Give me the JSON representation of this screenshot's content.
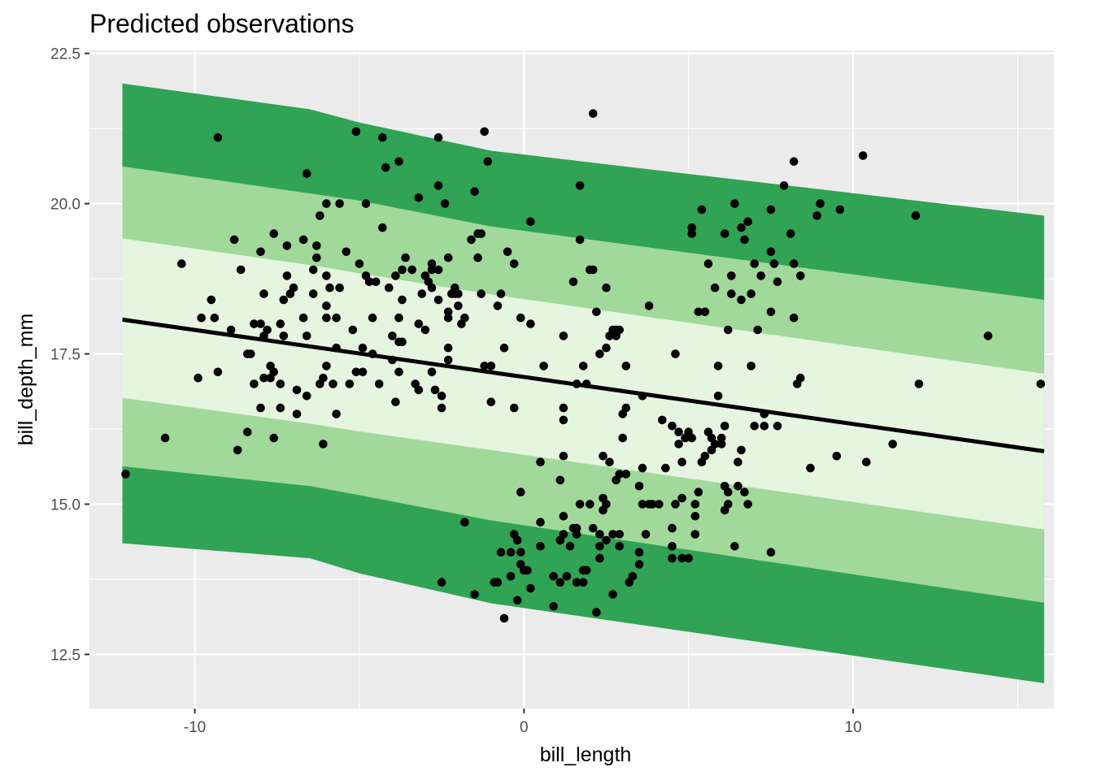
{
  "chart_data": {
    "type": "scatter",
    "title": "Predicted observations",
    "xlabel": "bill_length",
    "ylabel": "bill_depth_mm",
    "xlim": [
      -13.2,
      16.1
    ],
    "ylim": [
      11.6,
      22.55
    ],
    "x_ticks": [
      -10,
      0,
      10
    ],
    "x_tick_labels": [
      "-10",
      "0",
      "10"
    ],
    "y_ticks": [
      12.5,
      15.0,
      17.5,
      20.0,
      22.5
    ],
    "y_tick_labels": [
      "12.5",
      "15.0",
      "17.5",
      "20.0",
      "22.5"
    ],
    "grid": true,
    "background": "#ebebeb",
    "band_colors": {
      "outer": "#31a354",
      "middle": "#a1d99b",
      "inner": "#e5f5e0"
    },
    "line_color": "#000000",
    "point_color": "#000000",
    "fit_line": {
      "x": [
        -12.2,
        15.8
      ],
      "y": [
        18.07,
        15.88
      ]
    },
    "bands": {
      "x": [
        -12.2,
        -6.5,
        -5.0,
        -1.0,
        15.8
      ],
      "outer_upper": [
        22.0,
        21.57,
        21.35,
        20.88,
        19.8
      ],
      "middle_upper": [
        20.62,
        20.17,
        20.05,
        19.62,
        18.4
      ],
      "inner_upper": [
        19.42,
        18.98,
        18.84,
        18.49,
        17.17
      ],
      "inner_lower": [
        16.77,
        16.34,
        16.21,
        15.9,
        14.58
      ],
      "middle_lower": [
        15.63,
        15.3,
        15.15,
        14.73,
        13.36
      ],
      "outer_lower": [
        14.35,
        14.1,
        13.85,
        13.35,
        12.02
      ]
    },
    "points": [
      [
        -12.1,
        15.5
      ],
      [
        -10.9,
        16.1
      ],
      [
        -10.4,
        19.0
      ],
      [
        -9.9,
        17.1
      ],
      [
        -9.8,
        18.1
      ],
      [
        -9.5,
        18.4
      ],
      [
        -9.4,
        18.1
      ],
      [
        -9.3,
        17.2
      ],
      [
        -9.3,
        21.1
      ],
      [
        -8.9,
        17.9
      ],
      [
        -8.8,
        19.4
      ],
      [
        -8.7,
        15.9
      ],
      [
        -8.6,
        18.9
      ],
      [
        -8.4,
        16.2
      ],
      [
        -8.4,
        17.5
      ],
      [
        -8.3,
        17.5
      ],
      [
        -8.2,
        18.0
      ],
      [
        -8.2,
        17.0
      ],
      [
        -8.0,
        16.6
      ],
      [
        -8.0,
        18.0
      ],
      [
        -8.0,
        19.2
      ],
      [
        -7.9,
        17.8
      ],
      [
        -7.9,
        17.1
      ],
      [
        -7.9,
        18.5
      ],
      [
        -7.8,
        17.9
      ],
      [
        -7.7,
        17.1
      ],
      [
        -7.7,
        17.3
      ],
      [
        -7.6,
        16.1
      ],
      [
        -7.6,
        17.2
      ],
      [
        -7.6,
        19.5
      ],
      [
        -7.4,
        17.0
      ],
      [
        -7.4,
        16.6
      ],
      [
        -7.4,
        18.0
      ],
      [
        -7.3,
        17.8
      ],
      [
        -7.3,
        18.4
      ],
      [
        -7.2,
        18.8
      ],
      [
        -7.2,
        19.3
      ],
      [
        -7.1,
        18.5
      ],
      [
        -7.0,
        18.6
      ],
      [
        -6.9,
        16.5
      ],
      [
        -6.9,
        16.9
      ],
      [
        -6.7,
        18.1
      ],
      [
        -6.7,
        19.4
      ],
      [
        -6.6,
        20.5
      ],
      [
        -6.6,
        17.8
      ],
      [
        -6.6,
        16.8
      ],
      [
        -6.4,
        18.5
      ],
      [
        -6.4,
        18.9
      ],
      [
        -6.3,
        19.1
      ],
      [
        -6.3,
        19.3
      ],
      [
        -6.2,
        17.0
      ],
      [
        -6.2,
        19.8
      ],
      [
        -6.1,
        16.0
      ],
      [
        -6.1,
        17.1
      ],
      [
        -6.0,
        17.3
      ],
      [
        -6.0,
        18.1
      ],
      [
        -6.0,
        18.3
      ],
      [
        -6.0,
        18.8
      ],
      [
        -6.0,
        20.0
      ],
      [
        -5.9,
        18.6
      ],
      [
        -5.8,
        17.0
      ],
      [
        -5.7,
        16.5
      ],
      [
        -5.7,
        17.6
      ],
      [
        -5.7,
        18.1
      ],
      [
        -5.6,
        18.6
      ],
      [
        -5.6,
        20.0
      ],
      [
        -5.4,
        19.2
      ],
      [
        -5.3,
        17.0
      ],
      [
        -5.2,
        17.9
      ],
      [
        -5.1,
        17.2
      ],
      [
        -5.1,
        21.2
      ],
      [
        -5.0,
        19.0
      ],
      [
        -4.9,
        17.2
      ],
      [
        -4.9,
        17.6
      ],
      [
        -4.8,
        20.0
      ],
      [
        -4.8,
        18.8
      ],
      [
        -4.7,
        18.7
      ],
      [
        -4.6,
        17.5
      ],
      [
        -4.6,
        18.1
      ],
      [
        -4.5,
        18.7
      ],
      [
        -4.4,
        17.0
      ],
      [
        -4.3,
        19.6
      ],
      [
        -4.3,
        21.1
      ],
      [
        -4.2,
        20.6
      ],
      [
        -4.1,
        18.6
      ],
      [
        -4.0,
        17.4
      ],
      [
        -4.0,
        17.8
      ],
      [
        -3.9,
        16.7
      ],
      [
        -3.9,
        18.8
      ],
      [
        -3.8,
        17.2
      ],
      [
        -3.8,
        18.1
      ],
      [
        -3.8,
        20.7
      ],
      [
        -3.8,
        17.7
      ],
      [
        -3.7,
        17.7
      ],
      [
        -3.7,
        18.4
      ],
      [
        -3.7,
        18.9
      ],
      [
        -3.6,
        19.1
      ],
      [
        -3.4,
        18.9
      ],
      [
        -3.3,
        17.0
      ],
      [
        -3.2,
        20.1
      ],
      [
        -3.2,
        16.9
      ],
      [
        -3.2,
        18.0
      ],
      [
        -3.1,
        18.5
      ],
      [
        -3.0,
        18.8
      ],
      [
        -3.0,
        17.9
      ],
      [
        -2.9,
        18.7
      ],
      [
        -2.8,
        18.9
      ],
      [
        -2.8,
        18.6
      ],
      [
        -2.8,
        19.0
      ],
      [
        -2.8,
        17.2
      ],
      [
        -2.7,
        16.9
      ],
      [
        -2.6,
        18.4
      ],
      [
        -2.6,
        18.9
      ],
      [
        -2.5,
        16.8
      ],
      [
        -2.5,
        16.6
      ],
      [
        -2.5,
        13.7
      ],
      [
        -2.4,
        20.0
      ],
      [
        -2.3,
        19.1
      ],
      [
        -2.3,
        17.4
      ],
      [
        -2.3,
        17.6
      ],
      [
        -2.3,
        18.1
      ],
      [
        -2.3,
        18.2
      ],
      [
        -2.2,
        18.5
      ],
      [
        -2.1,
        18.6
      ],
      [
        -2.1,
        18.5
      ],
      [
        -2.0,
        18.3
      ],
      [
        -2.0,
        18.5
      ],
      [
        -1.9,
        18.0
      ],
      [
        -1.8,
        18.1
      ],
      [
        -2.6,
        20.3
      ],
      [
        -2.6,
        21.1
      ],
      [
        -1.8,
        14.7
      ],
      [
        -1.6,
        19.4
      ],
      [
        -1.5,
        13.5
      ],
      [
        -1.5,
        20.2
      ],
      [
        -1.4,
        19.5
      ],
      [
        -1.4,
        19.1
      ],
      [
        -1.3,
        18.5
      ],
      [
        -1.3,
        19.5
      ],
      [
        -1.2,
        21.2
      ],
      [
        -1.2,
        17.3
      ],
      [
        -1.1,
        20.7
      ],
      [
        -1.0,
        17.3
      ],
      [
        -1.0,
        16.7
      ],
      [
        -0.9,
        13.7
      ],
      [
        -0.8,
        13.7
      ],
      [
        -0.8,
        18.3
      ],
      [
        -0.7,
        14.2
      ],
      [
        -0.7,
        18.5
      ],
      [
        -0.6,
        13.1
      ],
      [
        -0.6,
        17.6
      ],
      [
        -0.5,
        19.2
      ],
      [
        -0.4,
        14.2
      ],
      [
        -0.4,
        13.8
      ],
      [
        -0.3,
        19.0
      ],
      [
        -0.3,
        16.6
      ],
      [
        -0.3,
        14.5
      ],
      [
        -0.2,
        14.4
      ],
      [
        -0.2,
        13.4
      ],
      [
        -0.1,
        15.2
      ],
      [
        -0.1,
        18.1
      ],
      [
        -0.1,
        14.2
      ],
      [
        -0.1,
        14.0
      ],
      [
        0.0,
        13.9
      ],
      [
        0.1,
        13.9
      ],
      [
        0.2,
        13.6
      ],
      [
        0.2,
        18.0
      ],
      [
        0.2,
        19.7
      ],
      [
        0.5,
        14.7
      ],
      [
        0.5,
        15.7
      ],
      [
        0.5,
        14.3
      ],
      [
        0.6,
        17.3
      ],
      [
        0.9,
        13.3
      ],
      [
        0.9,
        13.8
      ],
      [
        1.1,
        15.4
      ],
      [
        1.1,
        13.7
      ],
      [
        1.1,
        14.4
      ],
      [
        1.2,
        14.8
      ],
      [
        1.2,
        14.5
      ],
      [
        1.2,
        17.8
      ],
      [
        1.2,
        16.6
      ],
      [
        1.2,
        16.4
      ],
      [
        1.2,
        15.8
      ],
      [
        1.3,
        13.8
      ],
      [
        1.4,
        14.3
      ],
      [
        1.5,
        18.7
      ],
      [
        1.5,
        14.6
      ],
      [
        1.6,
        13.7
      ],
      [
        1.6,
        14.5
      ],
      [
        1.6,
        17.0
      ],
      [
        1.6,
        14.6
      ],
      [
        1.7,
        20.3
      ],
      [
        1.7,
        15.0
      ],
      [
        1.7,
        19.4
      ],
      [
        1.8,
        13.7
      ],
      [
        1.8,
        13.9
      ],
      [
        1.8,
        17.3
      ],
      [
        1.9,
        17.0
      ],
      [
        1.9,
        13.9
      ],
      [
        2.0,
        18.9
      ],
      [
        2.0,
        15.0
      ],
      [
        2.1,
        21.5
      ],
      [
        2.1,
        18.9
      ],
      [
        2.1,
        14.6
      ],
      [
        2.2,
        13.2
      ],
      [
        2.2,
        18.2
      ],
      [
        2.3,
        14.1
      ],
      [
        2.3,
        14.5
      ],
      [
        2.3,
        14.3
      ],
      [
        2.3,
        17.5
      ],
      [
        2.4,
        14.9
      ],
      [
        2.4,
        15.1
      ],
      [
        2.4,
        15.8
      ],
      [
        2.5,
        14.4
      ],
      [
        2.5,
        17.6
      ],
      [
        2.5,
        18.6
      ],
      [
        2.5,
        15.0
      ],
      [
        2.6,
        17.8
      ],
      [
        2.6,
        15.7
      ],
      [
        2.7,
        13.5
      ],
      [
        2.7,
        14.5
      ],
      [
        2.7,
        17.9
      ],
      [
        2.8,
        17.8
      ],
      [
        2.8,
        15.4
      ],
      [
        2.8,
        17.9
      ],
      [
        2.9,
        15.5
      ],
      [
        2.9,
        14.5
      ],
      [
        2.9,
        14.3
      ],
      [
        2.9,
        17.9
      ],
      [
        3.0,
        16.5
      ],
      [
        3.0,
        16.1
      ],
      [
        3.1,
        16.6
      ],
      [
        3.1,
        15.5
      ],
      [
        3.1,
        17.3
      ],
      [
        3.2,
        13.7
      ],
      [
        3.3,
        13.8
      ],
      [
        3.5,
        14.2
      ],
      [
        3.5,
        15.3
      ],
      [
        3.5,
        14.0
      ],
      [
        3.6,
        15.0
      ],
      [
        3.6,
        16.8
      ],
      [
        3.6,
        15.6
      ],
      [
        3.7,
        14.5
      ],
      [
        3.8,
        18.3
      ],
      [
        3.8,
        15.0
      ],
      [
        3.9,
        15.0
      ],
      [
        4.1,
        15.0
      ],
      [
        4.2,
        16.4
      ],
      [
        4.3,
        15.6
      ],
      [
        4.5,
        14.6
      ],
      [
        4.5,
        14.3
      ],
      [
        4.5,
        16.3
      ],
      [
        4.5,
        14.1
      ],
      [
        4.6,
        15.0
      ],
      [
        4.6,
        17.5
      ],
      [
        4.7,
        16.0
      ],
      [
        4.7,
        16.2
      ],
      [
        4.8,
        15.1
      ],
      [
        4.8,
        15.7
      ],
      [
        4.8,
        14.1
      ],
      [
        4.9,
        16.1
      ],
      [
        5.0,
        14.1
      ],
      [
        5.0,
        16.2
      ],
      [
        5.1,
        19.6
      ],
      [
        5.1,
        19.5
      ],
      [
        5.1,
        16.1
      ],
      [
        5.2,
        15.0
      ],
      [
        5.2,
        14.8
      ],
      [
        5.2,
        14.5
      ],
      [
        5.3,
        15.2
      ],
      [
        5.3,
        18.2
      ],
      [
        5.4,
        15.7
      ],
      [
        5.4,
        19.9
      ],
      [
        5.5,
        15.8
      ],
      [
        5.5,
        18.2
      ],
      [
        5.6,
        16.2
      ],
      [
        5.6,
        19.0
      ],
      [
        5.7,
        16.1
      ],
      [
        5.7,
        15.9
      ],
      [
        5.8,
        18.6
      ],
      [
        5.8,
        16.0
      ],
      [
        5.9,
        17.3
      ],
      [
        5.9,
        16.8
      ],
      [
        6.0,
        16.1
      ],
      [
        6.0,
        16.0
      ],
      [
        6.1,
        14.9
      ],
      [
        6.1,
        16.3
      ],
      [
        6.1,
        19.5
      ],
      [
        6.1,
        15.3
      ],
      [
        6.2,
        15.0
      ],
      [
        6.2,
        15.2
      ],
      [
        6.2,
        17.9
      ],
      [
        6.3,
        18.5
      ],
      [
        6.3,
        18.8
      ],
      [
        6.4,
        14.3
      ],
      [
        6.4,
        20.0
      ],
      [
        6.5,
        15.3
      ],
      [
        6.5,
        15.7
      ],
      [
        6.6,
        15.9
      ],
      [
        6.6,
        19.6
      ],
      [
        6.6,
        18.4
      ],
      [
        6.7,
        15.2
      ],
      [
        6.7,
        19.4
      ],
      [
        6.8,
        19.7
      ],
      [
        6.8,
        15.0
      ],
      [
        6.9,
        17.3
      ],
      [
        6.9,
        18.5
      ],
      [
        7.0,
        16.3
      ],
      [
        7.0,
        19.0
      ],
      [
        7.1,
        17.9
      ],
      [
        7.2,
        18.8
      ],
      [
        7.3,
        16.3
      ],
      [
        7.3,
        16.5
      ],
      [
        7.5,
        19.9
      ],
      [
        7.5,
        19.2
      ],
      [
        7.5,
        18.2
      ],
      [
        7.5,
        14.2
      ],
      [
        7.6,
        19.0
      ],
      [
        7.7,
        18.7
      ],
      [
        7.7,
        16.3
      ],
      [
        7.9,
        20.3
      ],
      [
        8.1,
        19.5
      ],
      [
        8.2,
        20.7
      ],
      [
        8.2,
        18.1
      ],
      [
        8.2,
        19.0
      ],
      [
        8.3,
        17.0
      ],
      [
        8.4,
        17.1
      ],
      [
        8.4,
        18.8
      ],
      [
        8.7,
        15.6
      ],
      [
        8.9,
        19.8
      ],
      [
        9.0,
        20.0
      ],
      [
        9.5,
        15.8
      ],
      [
        9.6,
        19.9
      ],
      [
        10.3,
        20.8
      ],
      [
        10.4,
        15.7
      ],
      [
        11.2,
        16.0
      ],
      [
        11.9,
        19.8
      ],
      [
        12.0,
        17.0
      ],
      [
        14.1,
        17.8
      ],
      [
        15.7,
        17.0
      ]
    ]
  }
}
